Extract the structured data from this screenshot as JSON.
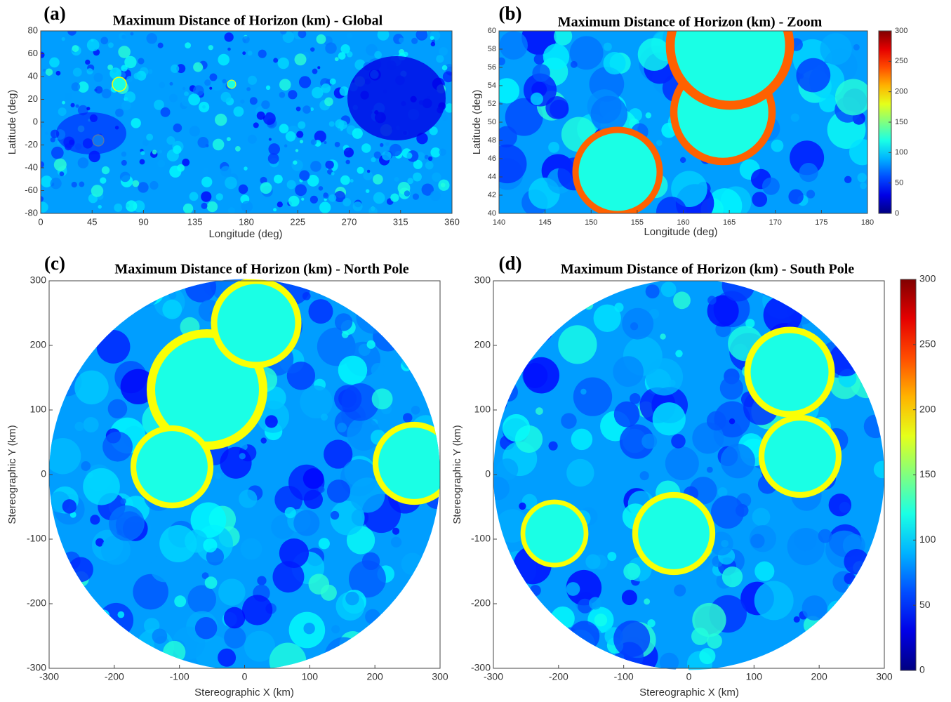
{
  "chart_data": [
    {
      "type": "heatmap",
      "panel_label": "(a)",
      "title": "Maximum Distance of Horizon (km) - Global",
      "xlabel": "Longitude (deg)",
      "ylabel": "Latitude (deg)",
      "xlim": [
        0,
        360
      ],
      "ylim": [
        -80,
        80
      ],
      "xticks": [
        0,
        45,
        90,
        135,
        180,
        225,
        270,
        315,
        360
      ],
      "yticks": [
        -80,
        -60,
        -40,
        -20,
        0,
        20,
        40,
        60,
        80
      ],
      "colormap": "jet"
    },
    {
      "type": "heatmap",
      "panel_label": "(b)",
      "title": "Maximum Distance of Horizon (km) - Zoom",
      "xlabel": "Longitude (deg)",
      "ylabel": "Latitude (deg)",
      "xlim": [
        140,
        180
      ],
      "ylim": [
        40,
        60
      ],
      "xticks": [
        140,
        145,
        150,
        155,
        160,
        165,
        170,
        175,
        180
      ],
      "yticks": [
        40,
        42,
        44,
        46,
        48,
        50,
        52,
        54,
        56,
        58,
        60
      ],
      "colormap": "jet",
      "clim": [
        0,
        300
      ],
      "cticks": [
        0,
        50,
        100,
        150,
        200,
        250,
        300
      ]
    },
    {
      "type": "heatmap",
      "panel_label": "(c)",
      "title": "Maximum Distance of Horizon (km) - North Pole",
      "xlabel": "Stereographic X (km)",
      "ylabel": "Stereographic Y (km)",
      "xlim": [
        -300,
        300
      ],
      "ylim": [
        -300,
        300
      ],
      "xticks": [
        -300,
        -200,
        -100,
        0,
        100,
        200,
        300
      ],
      "yticks": [
        -300,
        -200,
        -100,
        0,
        100,
        200,
        300
      ],
      "colormap": "jet"
    },
    {
      "type": "heatmap",
      "panel_label": "(d)",
      "title": "Maximum Distance of Horizon (km) - South Pole",
      "xlabel": "Stereographic X (km)",
      "ylabel": "Stereographic Y (km)",
      "xlim": [
        -300,
        300
      ],
      "ylim": [
        -300,
        300
      ],
      "xticks": [
        -300,
        -200,
        -100,
        0,
        100,
        200,
        300
      ],
      "yticks": [
        -300,
        -200,
        -100,
        0,
        100,
        200,
        300
      ],
      "colormap": "jet",
      "clim": [
        0,
        300
      ],
      "cticks": [
        0,
        50,
        100,
        150,
        200,
        250,
        300
      ]
    }
  ]
}
